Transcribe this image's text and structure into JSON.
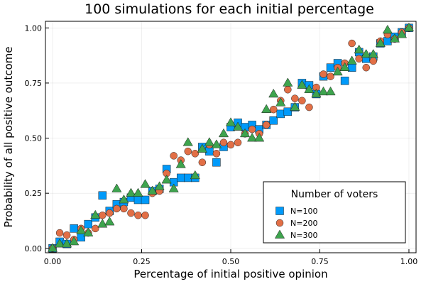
{
  "chart_data": {
    "type": "scatter",
    "title": "100 simulations for each initial percentage",
    "xlabel": "Percentage of initial positive opinion",
    "ylabel": "Probability of all positive outcome",
    "xlim": [
      -0.02,
      1.02
    ],
    "ylim": [
      -0.02,
      1.03
    ],
    "xticks": [
      0.0,
      0.25,
      0.5,
      0.75,
      1.0
    ],
    "xtick_labels": [
      "0.00",
      "0.25",
      "0.50",
      "0.75",
      "1.00"
    ],
    "yticks": [
      0.0,
      0.25,
      0.5,
      0.75,
      1.0
    ],
    "ytick_labels": [
      "0.00",
      "0.25",
      "0.50",
      "0.75",
      "1.00"
    ],
    "grid": true,
    "legend": {
      "title": "Number of voters",
      "placement": "bottom-right"
    },
    "series": [
      {
        "name": "N=100",
        "marker": "square",
        "color": "#009AFA",
        "points": [
          [
            0.0,
            0.0
          ],
          [
            0.02,
            0.03
          ],
          [
            0.04,
            0.02
          ],
          [
            0.06,
            0.09
          ],
          [
            0.08,
            0.05
          ],
          [
            0.1,
            0.11
          ],
          [
            0.12,
            0.14
          ],
          [
            0.14,
            0.24
          ],
          [
            0.16,
            0.17
          ],
          [
            0.18,
            0.2
          ],
          [
            0.2,
            0.21
          ],
          [
            0.22,
            0.23
          ],
          [
            0.24,
            0.22
          ],
          [
            0.26,
            0.22
          ],
          [
            0.28,
            0.26
          ],
          [
            0.3,
            0.27
          ],
          [
            0.32,
            0.36
          ],
          [
            0.34,
            0.3
          ],
          [
            0.36,
            0.32
          ],
          [
            0.38,
            0.32
          ],
          [
            0.4,
            0.32
          ],
          [
            0.42,
            0.46
          ],
          [
            0.44,
            0.44
          ],
          [
            0.46,
            0.39
          ],
          [
            0.48,
            0.46
          ],
          [
            0.5,
            0.55
          ],
          [
            0.52,
            0.57
          ],
          [
            0.54,
            0.55
          ],
          [
            0.56,
            0.56
          ],
          [
            0.58,
            0.54
          ],
          [
            0.6,
            0.56
          ],
          [
            0.62,
            0.58
          ],
          [
            0.64,
            0.61
          ],
          [
            0.66,
            0.62
          ],
          [
            0.68,
            0.64
          ],
          [
            0.7,
            0.75
          ],
          [
            0.72,
            0.74
          ],
          [
            0.74,
            0.7
          ],
          [
            0.76,
            0.78
          ],
          [
            0.78,
            0.82
          ],
          [
            0.8,
            0.84
          ],
          [
            0.82,
            0.76
          ],
          [
            0.84,
            0.82
          ],
          [
            0.86,
            0.89
          ],
          [
            0.88,
            0.86
          ],
          [
            0.9,
            0.87
          ],
          [
            0.92,
            0.93
          ],
          [
            0.94,
            0.94
          ],
          [
            0.96,
            0.96
          ],
          [
            0.98,
            0.98
          ],
          [
            1.0,
            1.0
          ]
        ]
      },
      {
        "name": "N=200",
        "marker": "circle",
        "color": "#E26F46",
        "points": [
          [
            0.0,
            0.0
          ],
          [
            0.02,
            0.07
          ],
          [
            0.04,
            0.06
          ],
          [
            0.06,
            0.04
          ],
          [
            0.08,
            0.09
          ],
          [
            0.1,
            0.07
          ],
          [
            0.12,
            0.09
          ],
          [
            0.14,
            0.15
          ],
          [
            0.16,
            0.16
          ],
          [
            0.18,
            0.18
          ],
          [
            0.2,
            0.18
          ],
          [
            0.22,
            0.16
          ],
          [
            0.24,
            0.15
          ],
          [
            0.26,
            0.15
          ],
          [
            0.28,
            0.25
          ],
          [
            0.3,
            0.26
          ],
          [
            0.32,
            0.34
          ],
          [
            0.34,
            0.42
          ],
          [
            0.36,
            0.4
          ],
          [
            0.38,
            0.44
          ],
          [
            0.4,
            0.43
          ],
          [
            0.42,
            0.39
          ],
          [
            0.44,
            0.47
          ],
          [
            0.46,
            0.43
          ],
          [
            0.48,
            0.48
          ],
          [
            0.5,
            0.47
          ],
          [
            0.52,
            0.48
          ],
          [
            0.54,
            0.52
          ],
          [
            0.56,
            0.54
          ],
          [
            0.58,
            0.52
          ],
          [
            0.6,
            0.56
          ],
          [
            0.62,
            0.63
          ],
          [
            0.64,
            0.67
          ],
          [
            0.66,
            0.72
          ],
          [
            0.68,
            0.68
          ],
          [
            0.7,
            0.67
          ],
          [
            0.72,
            0.64
          ],
          [
            0.74,
            0.73
          ],
          [
            0.76,
            0.79
          ],
          [
            0.78,
            0.78
          ],
          [
            0.8,
            0.82
          ],
          [
            0.82,
            0.84
          ],
          [
            0.84,
            0.93
          ],
          [
            0.86,
            0.86
          ],
          [
            0.88,
            0.82
          ],
          [
            0.9,
            0.85
          ],
          [
            0.92,
            0.94
          ],
          [
            0.94,
            0.97
          ],
          [
            0.96,
            0.95
          ],
          [
            0.98,
            0.98
          ],
          [
            1.0,
            1.0
          ]
        ]
      },
      {
        "name": "N=300",
        "marker": "triangle",
        "color": "#3EA44E",
        "points": [
          [
            0.0,
            0.0
          ],
          [
            0.02,
            0.02
          ],
          [
            0.04,
            0.02
          ],
          [
            0.06,
            0.03
          ],
          [
            0.08,
            0.08
          ],
          [
            0.1,
            0.07
          ],
          [
            0.12,
            0.15
          ],
          [
            0.14,
            0.11
          ],
          [
            0.16,
            0.12
          ],
          [
            0.18,
            0.27
          ],
          [
            0.2,
            0.22
          ],
          [
            0.22,
            0.25
          ],
          [
            0.24,
            0.25
          ],
          [
            0.26,
            0.29
          ],
          [
            0.28,
            0.26
          ],
          [
            0.3,
            0.28
          ],
          [
            0.32,
            0.31
          ],
          [
            0.34,
            0.27
          ],
          [
            0.36,
            0.38
          ],
          [
            0.38,
            0.48
          ],
          [
            0.4,
            0.33
          ],
          [
            0.42,
            0.45
          ],
          [
            0.44,
            0.48
          ],
          [
            0.46,
            0.47
          ],
          [
            0.48,
            0.52
          ],
          [
            0.5,
            0.57
          ],
          [
            0.52,
            0.55
          ],
          [
            0.54,
            0.52
          ],
          [
            0.56,
            0.5
          ],
          [
            0.58,
            0.5
          ],
          [
            0.6,
            0.63
          ],
          [
            0.62,
            0.7
          ],
          [
            0.64,
            0.66
          ],
          [
            0.66,
            0.75
          ],
          [
            0.68,
            0.64
          ],
          [
            0.7,
            0.74
          ],
          [
            0.72,
            0.72
          ],
          [
            0.74,
            0.7
          ],
          [
            0.76,
            0.71
          ],
          [
            0.78,
            0.71
          ],
          [
            0.8,
            0.8
          ],
          [
            0.82,
            0.82
          ],
          [
            0.84,
            0.85
          ],
          [
            0.86,
            0.9
          ],
          [
            0.88,
            0.88
          ],
          [
            0.9,
            0.88
          ],
          [
            0.92,
            0.93
          ],
          [
            0.94,
            0.99
          ],
          [
            0.96,
            0.95
          ],
          [
            0.98,
            0.97
          ],
          [
            1.0,
            1.0
          ]
        ]
      }
    ]
  }
}
